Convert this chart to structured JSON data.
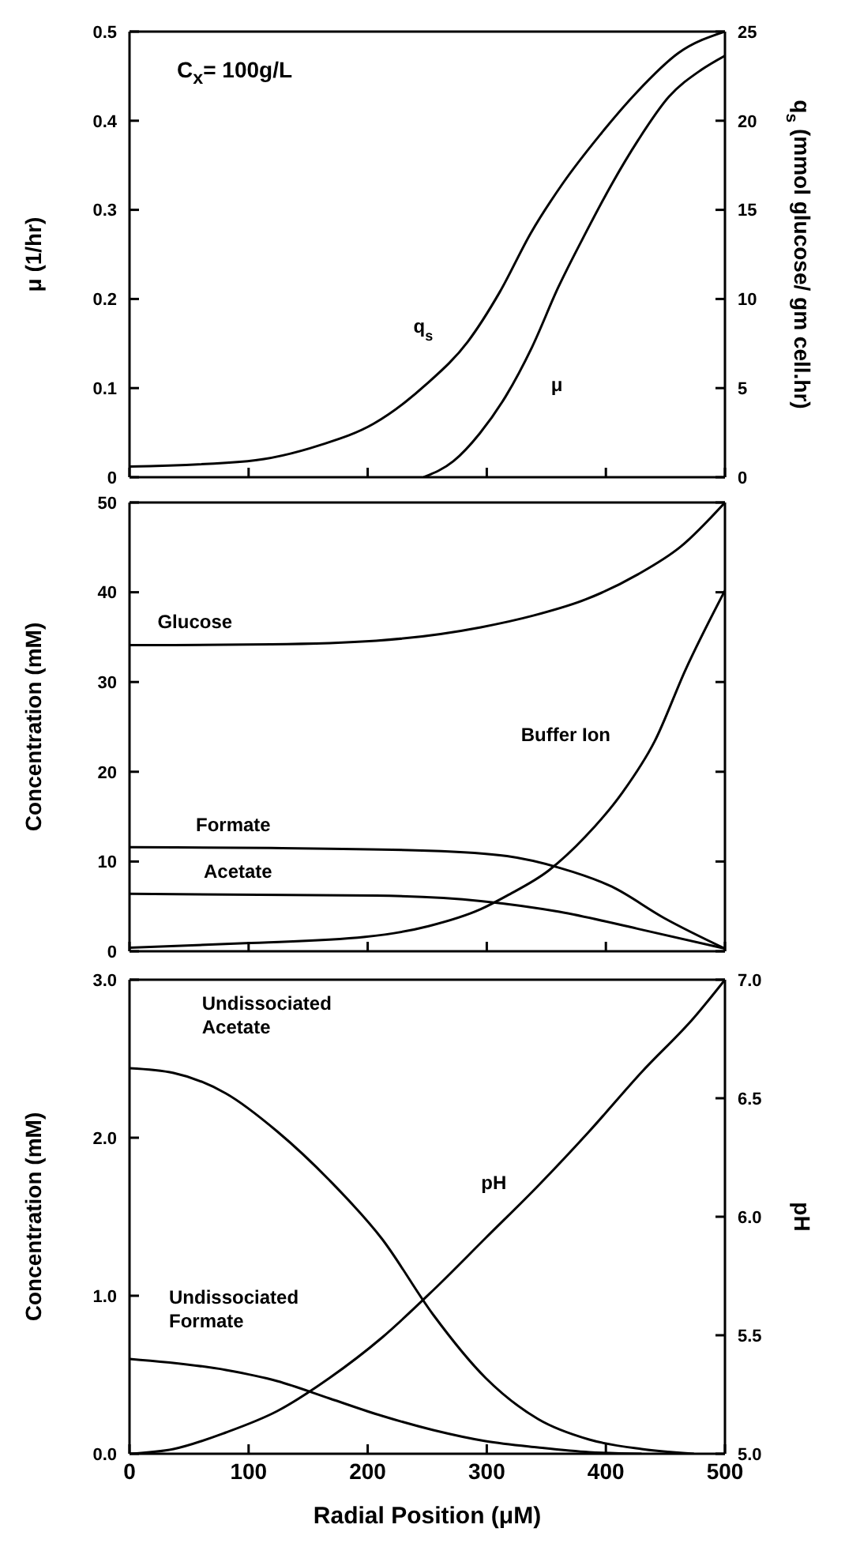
{
  "chart_data": [
    {
      "type": "line",
      "ylabel": "μ (1/hr)",
      "y2label": "q$_{s}$ (mmol glucose/ gm cell.hr)",
      "annotations": [
        "C$_{x}$= 100g/L"
      ],
      "xlim": [
        0,
        500
      ],
      "xticks": [
        0,
        100,
        200,
        300,
        400,
        500
      ],
      "ylim": [
        0,
        0.5
      ],
      "yticks": [
        {
          "value": 0,
          "label": "0"
        },
        0.1,
        0.2,
        0.3,
        0.4,
        0.5
      ],
      "y2lim": [
        0,
        25
      ],
      "y2ticks": [
        0,
        5,
        10,
        15,
        20,
        25
      ],
      "tick_labels": "y",
      "marker": "none",
      "line_style": "solid",
      "series": [
        {
          "name": "q$_{s}$",
          "color": "#000000",
          "axis": "y2",
          "x": [
            0,
            99,
            160,
            205,
            249,
            284,
            311,
            337,
            364,
            395,
            426,
            461,
            500
          ],
          "values": [
            0.6,
            0.9,
            1.8,
            3.0,
            5.2,
            7.6,
            10.4,
            13.7,
            16.5,
            19.2,
            21.6,
            23.8,
            25
          ]
        },
        {
          "name": "μ",
          "color": "#000000",
          "x": [
            247,
            272,
            294,
            316,
            338,
            360,
            383,
            405,
            427,
            453,
            480,
            500
          ],
          "values": [
            0,
            0.018,
            0.049,
            0.091,
            0.146,
            0.213,
            0.274,
            0.329,
            0.378,
            0.427,
            0.457,
            0.473
          ]
        }
      ]
    },
    {
      "type": "line",
      "ylabel": "Concentration (mM)",
      "xlim": [
        0,
        500
      ],
      "xticks": [
        0,
        100,
        200,
        300,
        400,
        500
      ],
      "ylim": [
        0,
        50
      ],
      "yticks": [
        0,
        10,
        20,
        30,
        40,
        50
      ],
      "tick_labels": "y",
      "marker": "none",
      "line_style": "solid",
      "series": [
        {
          "name": "Glucose",
          "color": "#000000",
          "x": [
            0,
            119,
            207,
            295,
            339,
            383,
            427,
            463,
            500
          ],
          "values": [
            34.1,
            34.2,
            34.6,
            36.1,
            37.4,
            39.2,
            42.0,
            45.1,
            50
          ]
        },
        {
          "name": "Buffer Ion",
          "color": "#000000",
          "x": [
            0,
            97,
            198,
            251,
            295,
            317,
            352,
            383,
            414,
            441,
            467,
            500
          ],
          "values": [
            0.4,
            0.9,
            1.6,
            2.8,
            4.7,
            6.2,
            9.0,
            12.8,
            17.7,
            23.4,
            31.4,
            40.2
          ]
        },
        {
          "name": "Formate",
          "color": "#000000",
          "x": [
            0,
            119,
            251,
            317,
            361,
            405,
            449,
            500
          ],
          "values": [
            11.6,
            11.5,
            11.2,
            10.6,
            9.3,
            7.2,
            3.7,
            0.3
          ]
        },
        {
          "name": "Acetate",
          "color": "#000000",
          "x": [
            0,
            207,
            295,
            361,
            427,
            500
          ],
          "values": [
            6.4,
            6.2,
            5.6,
            4.4,
            2.5,
            0.3
          ]
        }
      ]
    },
    {
      "type": "line",
      "xlabel": "Radial Position (μM)",
      "ylabel": "Concentration (mM)",
      "y2label": "pH",
      "xlim": [
        0,
        500
      ],
      "xticks": [
        0,
        100,
        200,
        300,
        400,
        500
      ],
      "ylim": [
        0,
        3.0
      ],
      "yticks": [
        {
          "value": 0,
          "label": "0.0"
        },
        {
          "value": 1,
          "label": "1.0"
        },
        {
          "value": 2,
          "label": "2.0"
        },
        {
          "value": 3,
          "label": "3.0"
        }
      ],
      "y2lim": [
        5.0,
        7.0
      ],
      "y2ticks": [
        {
          "value": 5,
          "label": "5.0"
        },
        5.5,
        {
          "value": 6,
          "label": "6.0"
        },
        6.5,
        {
          "value": 7,
          "label": "7.0"
        }
      ],
      "marker": "none",
      "line_style": "solid",
      "series": [
        {
          "name": "Undissociated\nAcetate",
          "color": "#000000",
          "x": [
            0,
            37,
            81,
            124,
            168,
            212,
            255,
            299,
            343,
            386,
            430,
            474
          ],
          "values": [
            2.44,
            2.41,
            2.28,
            2.04,
            1.73,
            1.36,
            0.88,
            0.48,
            0.22,
            0.09,
            0.03,
            0
          ]
        },
        {
          "name": "Undissociated\nFormate",
          "color": "#000000",
          "x": [
            0,
            81,
            124,
            168,
            212,
            255,
            299,
            343,
            386,
            430
          ],
          "values": [
            0.6,
            0.53,
            0.46,
            0.35,
            0.24,
            0.15,
            0.08,
            0.04,
            0.01,
            0
          ]
        },
        {
          "name": "pH",
          "color": "#000000",
          "axis": "y2",
          "x": [
            0,
            37,
            81,
            124,
            168,
            212,
            255,
            299,
            343,
            386,
            430,
            474,
            500
          ],
          "values": [
            5.0,
            5.02,
            5.09,
            5.18,
            5.32,
            5.49,
            5.69,
            5.91,
            6.13,
            6.36,
            6.61,
            6.84,
            7.0
          ]
        }
      ]
    }
  ]
}
